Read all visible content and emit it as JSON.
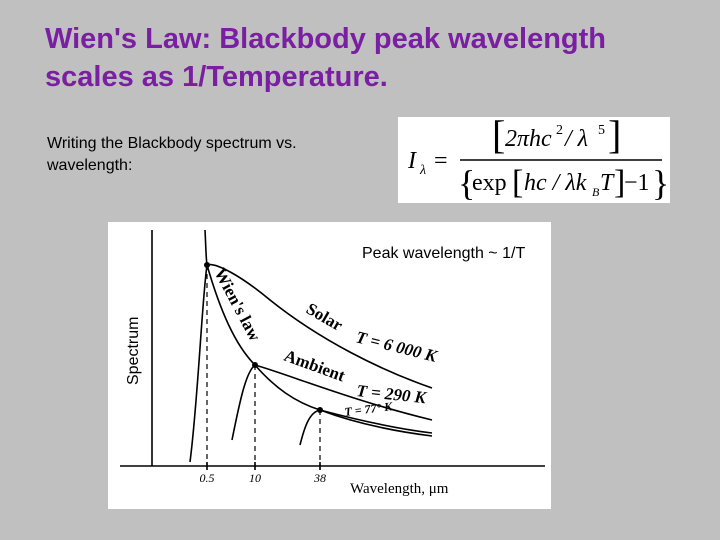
{
  "slide": {
    "title": [
      "Wien's Law:  Blackbody peak wavelength",
      "scales as 1/Temperature."
    ],
    "body": [
      "Writing the Blackbody spectrum vs.",
      "wavelength:"
    ],
    "equation": {
      "lhs": "I",
      "lhs_sub": "λ",
      "equals": "=",
      "num_a": "2πhc",
      "num_sup1": "2",
      "num_b": " / λ",
      "num_sup2": "5",
      "den_a": "exp",
      "den_b": "hc / λk",
      "den_sub": "B",
      "den_c": "T",
      "den_d": "−1"
    },
    "figure": {
      "heading": "Peak wavelength ~ 1/T",
      "y_label": "Spectrum",
      "x_label": "Wavelength, μm",
      "x_ticks": [
        "0.5",
        "10",
        "38"
      ],
      "curve_labels": {
        "wien": "Wien's law",
        "solar": "Solar",
        "solar_t": "T = 6 000 K",
        "ambient": "Ambient",
        "ambient_t": "T = 290 K",
        "cold_t": "T = 77° K"
      }
    }
  }
}
